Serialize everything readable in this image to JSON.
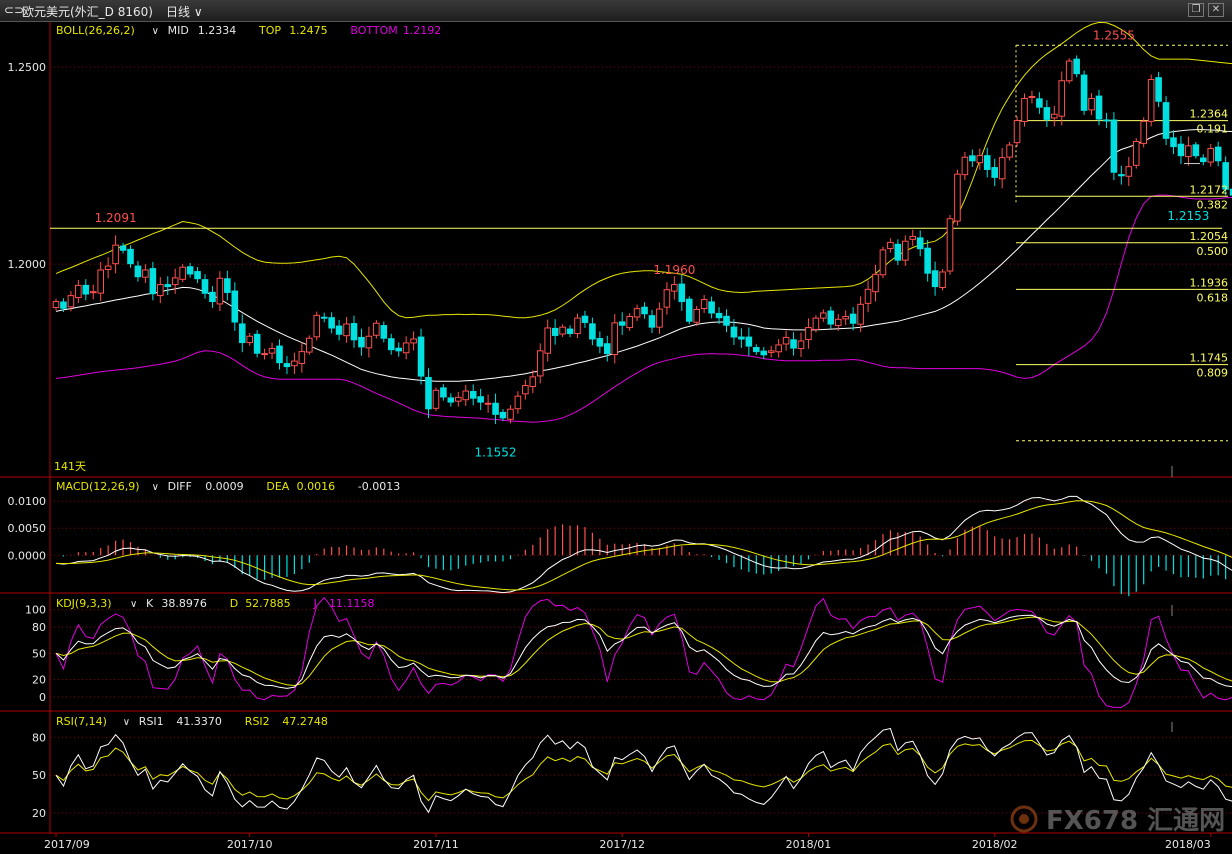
{
  "window": {
    "symbol_icon": "link-icon",
    "title": "欧元美元(外汇_D 8160)",
    "period": "日线",
    "dropdown_icon": "chevron-down-icon",
    "controls": [
      "restore-icon",
      "close-icon"
    ]
  },
  "colors": {
    "up": "#ff4f4f",
    "down": "#00e0e0",
    "boll_mid": "#ffffff",
    "boll_top": "#e6e600",
    "boll_bottom": "#e000e0",
    "grid": "#8b0000",
    "axis": "#b00000",
    "fib": "#ffff66",
    "label": "#e6e600"
  },
  "chart_data": [
    {
      "type": "candlestick",
      "panel": "price",
      "indicator_name": "BOLL(26,26,2)",
      "readouts": [
        {
          "key": "mid",
          "label": "MID",
          "value": "1.2334",
          "color": "#e8e8e8"
        },
        {
          "key": "top",
          "label": "TOP",
          "value": "1.2475",
          "color": "#e6e600"
        },
        {
          "key": "bottom",
          "label": "BOTTOM",
          "value": "1.2192",
          "color": "#e000e0"
        }
      ],
      "y_ticks": [
        "1.2500",
        "1.2000"
      ],
      "y_tick_values": [
        1.25,
        1.2
      ],
      "ylim": [
        1.146,
        1.2614
      ],
      "x_ticks": [
        "2017/09",
        "2017/10",
        "2017/11",
        "2017/12",
        "2018/01",
        "2018/02",
        "2018/03"
      ],
      "x_tick_index": [
        0,
        26,
        51,
        76,
        101,
        126,
        155
      ],
      "visible_days_label": "141天",
      "annotations": [
        {
          "text": "1.2091",
          "index": 8,
          "value": 1.2091,
          "color": "#ff4f4f",
          "pos": "above"
        },
        {
          "text": "1.1552",
          "index": 59,
          "value": 1.1552,
          "color": "#00e0e0",
          "pos": "below"
        },
        {
          "text": "1.1960",
          "index": 83,
          "value": 1.196,
          "color": "#ff4f4f",
          "pos": "above"
        },
        {
          "text": "1.2555",
          "index": 142,
          "value": 1.2555,
          "color": "#ff4f4f",
          "pos": "above"
        },
        {
          "text": "1.2153",
          "index": 152,
          "value": 1.2153,
          "color": "#00e0e0",
          "pos": "below"
        }
      ],
      "horizontal_line": {
        "value": 1.2091
      },
      "fib_levels": [
        {
          "price": "1.2364",
          "ratio": "0.191",
          "value": 1.2364
        },
        {
          "price": "1.2172",
          "ratio": "0.382",
          "value": 1.2172
        },
        {
          "price": "1.2054",
          "ratio": "0.500",
          "value": 1.2054
        },
        {
          "price": "1.1936",
          "ratio": "0.618",
          "value": 1.1936
        },
        {
          "price": "1.1745",
          "ratio": "0.809",
          "value": 1.1745
        }
      ],
      "fib_dashed": [
        1.2555,
        1.1552
      ],
      "closes": [
        1.1905,
        1.1888,
        1.192,
        1.1946,
        1.1924,
        1.193,
        1.1985,
        1.1995,
        1.2048,
        1.2035,
        1.2001,
        1.1968,
        1.1985,
        1.1925,
        1.1948,
        1.1943,
        1.1965,
        1.1992,
        1.1975,
        1.1963,
        1.1926,
        1.1905,
        1.1964,
        1.1928,
        1.1853,
        1.1801,
        1.1817,
        1.1774,
        1.1773,
        1.1786,
        1.175,
        1.174,
        1.1754,
        1.1778,
        1.1812,
        1.187,
        1.1864,
        1.1838,
        1.1822,
        1.1848,
        1.1808,
        1.179,
        1.1817,
        1.185,
        1.1812,
        1.1783,
        1.178,
        1.18,
        1.181,
        1.1716,
        1.1633,
        1.168,
        1.1663,
        1.165,
        1.1662,
        1.1678,
        1.166,
        1.165,
        1.1647,
        1.1619,
        1.161,
        1.1632,
        1.1665,
        1.1692,
        1.1714,
        1.178,
        1.1838,
        1.1819,
        1.184,
        1.1824,
        1.1863,
        1.1852,
        1.181,
        1.1792,
        1.1773,
        1.1851,
        1.1845,
        1.1867,
        1.1887,
        1.1874,
        1.184,
        1.1886,
        1.1935,
        1.1948,
        1.1905,
        1.1855,
        1.1885,
        1.191,
        1.1876,
        1.1864,
        1.1845,
        1.1815,
        1.181,
        1.1792,
        1.1778,
        1.177,
        1.178,
        1.1795,
        1.1814,
        1.1787,
        1.1805,
        1.1839,
        1.1863,
        1.1876,
        1.1848,
        1.186,
        1.1867,
        1.185,
        1.1898,
        1.1936,
        1.1974,
        1.2036,
        1.2055,
        1.201,
        1.2058,
        1.207,
        1.2039,
        1.1977,
        1.1943,
        1.198,
        1.2115,
        1.2228,
        1.2271,
        1.2262,
        1.2275,
        1.224,
        1.222,
        1.227,
        1.2302,
        1.2364,
        1.242,
        1.2425,
        1.2398,
        1.2367,
        1.238,
        1.2465,
        1.2515,
        1.2483,
        1.239,
        1.242,
        1.2368,
        1.2363,
        1.2233,
        1.2224,
        1.2247,
        1.2311,
        1.2362,
        1.2468,
        1.2413,
        1.2319,
        1.2298,
        1.2275,
        1.23,
        1.2275,
        1.226,
        1.2293,
        1.2262,
        1.219,
        1.2175,
        1.2226,
        1.2285,
        1.2311,
        1.2384,
        1.2395,
        1.2311,
        1.2323,
        1.2305,
        1.2344,
        1.2358,
        1.231,
        1.2282
      ],
      "boll_mid": [
        1.188,
        1.1884,
        1.1887,
        1.1891,
        1.1894,
        1.1898,
        1.1901,
        1.1905,
        1.1909,
        1.1912,
        1.1916,
        1.1919,
        1.1923,
        1.1926,
        1.193,
        1.1934,
        1.1937,
        1.1941,
        1.194,
        1.1936,
        1.193,
        1.1921,
        1.1911,
        1.19,
        1.1889,
        1.1877,
        1.1866,
        1.1855,
        1.1845,
        1.1835,
        1.1826,
        1.1817,
        1.1809,
        1.1801,
        1.1793,
        1.1785,
        1.1777,
        1.1769,
        1.176,
        1.1751,
        1.1742,
        1.1733,
        1.1727,
        1.1722,
        1.1718,
        1.1714,
        1.1711,
        1.1709,
        1.1707,
        1.1705,
        1.1704,
        1.1703,
        1.1703,
        1.1703,
        1.1703,
        1.1704,
        1.1705,
        1.1707,
        1.1709,
        1.1711,
        1.1714,
        1.1716,
        1.1719,
        1.1722,
        1.1726,
        1.1729,
        1.1732,
        1.1736,
        1.174,
        1.1744,
        1.1749,
        1.1753,
        1.1758,
        1.1763,
        1.1768,
        1.1774,
        1.178,
        1.1786,
        1.1792,
        1.1799,
        1.1806,
        1.1813,
        1.1821,
        1.1829,
        1.1837,
        1.1842,
        1.1847,
        1.185,
        1.1852,
        1.1853,
        1.1853,
        1.1852,
        1.185,
        1.1847,
        1.1843,
        1.1838,
        1.1836,
        1.1835,
        1.1834,
        1.1833,
        1.1833,
        1.1833,
        1.1833,
        1.1834,
        1.1835,
        1.1836,
        1.1837,
        1.1838,
        1.184,
        1.1843,
        1.1846,
        1.1849,
        1.1852,
        1.1855,
        1.186,
        1.1865,
        1.187,
        1.1875,
        1.188,
        1.1888,
        1.1898,
        1.191,
        1.1923,
        1.1937,
        1.1952,
        1.1968,
        1.1984,
        1.2001,
        1.2019,
        1.2037,
        1.2056,
        1.2075,
        1.2093,
        1.2112,
        1.213,
        1.2149,
        1.2168,
        1.2187,
        1.2206,
        1.2225,
        1.2243,
        1.2262,
        1.2281,
        1.2291,
        1.2297,
        1.2304,
        1.2312,
        1.2321,
        1.2329,
        1.2333,
        1.2336,
        1.2338,
        1.234,
        1.2341,
        1.2341,
        1.234,
        1.2339,
        1.2337,
        1.2336,
        1.2334,
        1.2333,
        1.2332,
        1.233,
        1.233,
        1.2331,
        1.2332,
        1.2333,
        1.2333,
        1.2334,
        1.2334,
        1.2334,
        1.2334,
        1.2334
      ],
      "boll_top": [
        1.1976,
        1.1984,
        1.1991,
        1.1999,
        1.2007,
        1.2015,
        1.2022,
        1.203,
        1.2038,
        1.2046,
        1.2053,
        1.2061,
        1.2069,
        1.2077,
        1.2084,
        1.2092,
        1.21,
        1.2108,
        1.2105,
        1.2101,
        1.2093,
        1.2082,
        1.2071,
        1.2057,
        1.2043,
        1.203,
        1.2019,
        1.201,
        1.2005,
        1.2003,
        1.2002,
        1.2002,
        1.2003,
        1.2005,
        1.2008,
        1.2011,
        1.2014,
        1.2018,
        1.202,
        1.2016,
        1.2,
        1.1978,
        1.1955,
        1.193,
        1.1904,
        1.1883,
        1.1869,
        1.1864,
        1.1865,
        1.1868,
        1.187,
        1.187,
        1.1872,
        1.1872,
        1.1873,
        1.1872,
        1.1873,
        1.1872,
        1.1872,
        1.187,
        1.1868,
        1.1866,
        1.1864,
        1.1864,
        1.1866,
        1.187,
        1.1876,
        1.1884,
        1.1895,
        1.1908,
        1.1922,
        1.1935,
        1.1947,
        1.1957,
        1.1965,
        1.1972,
        1.1977,
        1.198,
        1.1982,
        1.1983,
        1.1983,
        1.1981,
        1.1979,
        1.1977,
        1.1974,
        1.1968,
        1.196,
        1.1951,
        1.1942,
        1.1935,
        1.1931,
        1.1929,
        1.1928,
        1.1929,
        1.1931,
        1.1932,
        1.1933,
        1.1934,
        1.1935,
        1.1936,
        1.1937,
        1.1938,
        1.1939,
        1.194,
        1.1941,
        1.1942,
        1.1943,
        1.1945,
        1.1951,
        1.1962,
        1.1976,
        1.1992,
        1.2008,
        1.2022,
        1.2033,
        1.2042,
        1.2049,
        1.2054,
        1.2058,
        1.207,
        1.209,
        1.2123,
        1.2164,
        1.2212,
        1.2263,
        1.2312,
        1.2356,
        1.2394,
        1.2426,
        1.2454,
        1.2479,
        1.25,
        1.2518,
        1.2533,
        1.2546,
        1.2559,
        1.2573,
        1.2587,
        1.2599,
        1.2608,
        1.2613,
        1.2612,
        1.2605,
        1.2595,
        1.2582,
        1.2564,
        1.2544,
        1.2528,
        1.252,
        1.252,
        1.252,
        1.252,
        1.252,
        1.2518,
        1.2516,
        1.2514,
        1.2512,
        1.251,
        1.2508,
        1.2506,
        1.2504,
        1.2502,
        1.25,
        1.2497,
        1.2494,
        1.2491,
        1.2485,
        1.2479,
        1.2477,
        1.2476,
        1.2475,
        1.2475
      ],
      "boll_bottom": [
        1.171,
        1.1712,
        1.1715,
        1.1718,
        1.1721,
        1.1724,
        1.1727,
        1.1729,
        1.1731,
        1.1733,
        1.1735,
        1.1737,
        1.174,
        1.1743,
        1.1746,
        1.175,
        1.1754,
        1.176,
        1.1768,
        1.1776,
        1.178,
        1.1779,
        1.1775,
        1.1767,
        1.1756,
        1.1743,
        1.1731,
        1.1721,
        1.1714,
        1.171,
        1.1708,
        1.1708,
        1.1708,
        1.1708,
        1.1708,
        1.1708,
        1.1708,
        1.1708,
        1.1708,
        1.1705,
        1.1698,
        1.169,
        1.1681,
        1.1672,
        1.1664,
        1.1656,
        1.1648,
        1.1639,
        1.163,
        1.1623,
        1.1618,
        1.1616,
        1.1614,
        1.1613,
        1.1612,
        1.1611,
        1.161,
        1.1609,
        1.1607,
        1.1606,
        1.1604,
        1.1602,
        1.1601,
        1.16,
        1.1599,
        1.16,
        1.1602,
        1.1605,
        1.161,
        1.1618,
        1.1627,
        1.1638,
        1.165,
        1.1663,
        1.1676,
        1.1689,
        1.1701,
        1.1713,
        1.1724,
        1.1735,
        1.1744,
        1.1751,
        1.1756,
        1.176,
        1.1765,
        1.1768,
        1.1771,
        1.1772,
        1.1773,
        1.1772,
        1.1772,
        1.1771,
        1.1769,
        1.1767,
        1.1764,
        1.176,
        1.1758,
        1.1756,
        1.1755,
        1.1755,
        1.1755,
        1.1755,
        1.1755,
        1.1756,
        1.1756,
        1.1756,
        1.1757,
        1.1758,
        1.1756,
        1.1751,
        1.1746,
        1.1741,
        1.1738,
        1.1737,
        1.1737,
        1.1736,
        1.1735,
        1.1735,
        1.1735,
        1.1735,
        1.1735,
        1.1735,
        1.1735,
        1.1735,
        1.1735,
        1.1733,
        1.173,
        1.1726,
        1.172,
        1.1713,
        1.171,
        1.1712,
        1.172,
        1.1732,
        1.1745,
        1.1757,
        1.1768,
        1.178,
        1.1792,
        1.1808,
        1.1834,
        1.1876,
        1.1934,
        1.2002,
        1.2067,
        1.2117,
        1.2153,
        1.2172,
        1.2175,
        1.2175,
        1.2173,
        1.217,
        1.2167,
        1.2165,
        1.2165,
        1.2165,
        1.2166,
        1.2168,
        1.2169,
        1.217,
        1.2172,
        1.2173,
        1.2175,
        1.2177,
        1.2179,
        1.2181,
        1.2183,
        1.2185,
        1.2187,
        1.2189,
        1.2191,
        1.2192
      ]
    },
    {
      "type": "line+bar",
      "panel": "macd",
      "indicator_name": "MACD(12,26,9)",
      "readouts": [
        {
          "key": "diff",
          "label": "DIFF",
          "value": "0.0009",
          "color": "#e8e8e8"
        },
        {
          "key": "dea",
          "label": "DEA",
          "value": "0.0016",
          "color": "#e6e600"
        },
        {
          "key": "macd",
          "label": "",
          "value": "-0.0013",
          "color": "#e8e8e8"
        }
      ],
      "y_ticks": [
        "0.0100",
        "0.0050",
        "0.0000"
      ],
      "y_tick_values": [
        0.01,
        0.005,
        0.0
      ],
      "ylim": [
        -0.0068,
        0.0143
      ]
    },
    {
      "type": "line",
      "panel": "kdj",
      "indicator_name": "KDJ(9,3,3)",
      "readouts": [
        {
          "key": "k",
          "label": "K",
          "value": "38.8976",
          "color": "#e8e8e8"
        },
        {
          "key": "d",
          "label": "D",
          "value": "52.7885",
          "color": "#e6e600"
        },
        {
          "key": "j",
          "label": "J",
          "value": "11.1158",
          "color": "#e000e0"
        }
      ],
      "y_ticks": [
        "100",
        "80",
        "50",
        "20",
        "0"
      ],
      "y_tick_values": [
        100,
        80,
        50,
        20,
        0
      ],
      "ylim": [
        -15,
        118
      ]
    },
    {
      "type": "line",
      "panel": "rsi",
      "indicator_name": "RSI(7,14)",
      "readouts": [
        {
          "key": "rsi1",
          "label": "RSI1",
          "value": "41.3370",
          "color": "#e8e8e8"
        },
        {
          "key": "rsi2",
          "label": "RSI2",
          "value": "47.2748",
          "color": "#e6e600"
        }
      ],
      "y_ticks": [
        "80",
        "50",
        "20"
      ],
      "y_tick_values": [
        80,
        50,
        20
      ],
      "ylim": [
        5,
        100
      ]
    }
  ],
  "watermark": {
    "text": "FX678 汇通网",
    "logo": "fx678-logo"
  }
}
